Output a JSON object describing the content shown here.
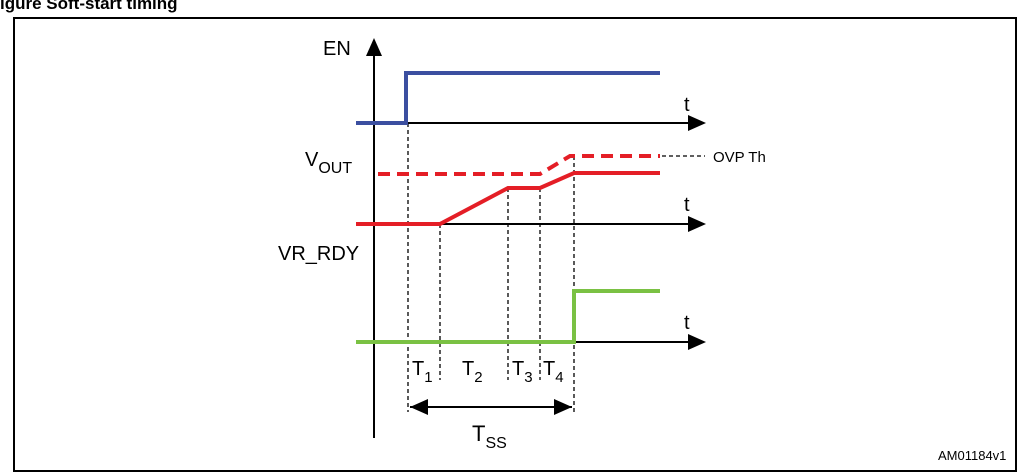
{
  "figure_title": "igure          Soft-start timing",
  "signals": {
    "en": {
      "label": "EN",
      "color": "#3b4fa0"
    },
    "vout": {
      "label_main": "V",
      "label_sub": "OUT",
      "color": "#e41e26"
    },
    "ovp": {
      "label": "OVP Th",
      "color": "#e41e26"
    },
    "vr_rdy": {
      "label": "VR_RDY",
      "color": "#7ac143"
    }
  },
  "time_axis_label": "t",
  "intervals": [
    {
      "main": "T",
      "sub": "1"
    },
    {
      "main": "T",
      "sub": "2"
    },
    {
      "main": "T",
      "sub": "3"
    },
    {
      "main": "T",
      "sub": "4"
    }
  ],
  "tss": {
    "main": "T",
    "sub": "SS"
  },
  "figure_id": "AM01184v1"
}
